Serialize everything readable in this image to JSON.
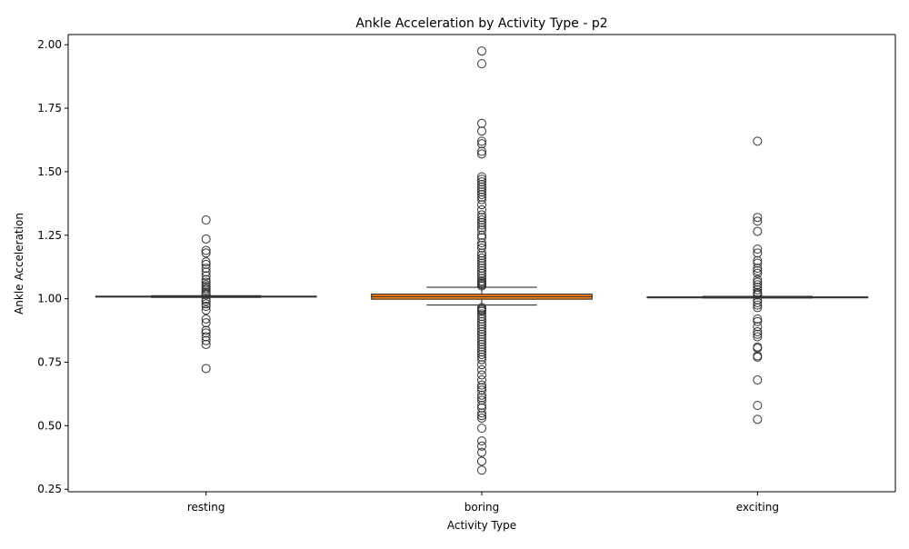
{
  "chart_data": {
    "type": "box",
    "title": "Ankle Acceleration by Activity Type - p2",
    "xlabel": "Activity Type",
    "ylabel": "Ankle Acceleration",
    "ylim": [
      0.24,
      2.04
    ],
    "yticks": [
      0.25,
      0.5,
      0.75,
      1.0,
      1.25,
      1.5,
      1.75,
      2.0
    ],
    "ytick_labels": [
      "0.25",
      "0.50",
      "0.75",
      "1.00",
      "1.25",
      "1.50",
      "1.75",
      "2.00"
    ],
    "grid": false,
    "categories": [
      "resting",
      "boring",
      "exciting"
    ],
    "boxes": [
      {
        "category": "resting",
        "color": "#1f77b4",
        "whisker_low": 1.005,
        "q1": 1.007,
        "median": 1.008,
        "q3": 1.01,
        "whisker_high": 1.012,
        "outliers": [
          1.31,
          1.235,
          1.19,
          1.18,
          1.145,
          1.135,
          1.12,
          1.105,
          1.09,
          1.075,
          1.065,
          1.055,
          1.048,
          1.04,
          1.033,
          1.026,
          1.02,
          1.015,
          0.998,
          0.99,
          0.98,
          0.97,
          0.955,
          0.92,
          0.905,
          0.875,
          0.865,
          0.85,
          0.835,
          0.82,
          0.725
        ]
      },
      {
        "category": "boring",
        "color": "#ff7f0e",
        "whisker_low": 0.975,
        "q1": 0.998,
        "median": 1.008,
        "q3": 1.018,
        "whisker_high": 1.045,
        "outliers": [
          1.975,
          1.925,
          1.69,
          1.66,
          1.62,
          1.61,
          1.58,
          1.57,
          1.48,
          1.47,
          1.46,
          1.45,
          1.44,
          1.43,
          1.42,
          1.41,
          1.4,
          1.39,
          1.37,
          1.35,
          1.33,
          1.32,
          1.31,
          1.3,
          1.29,
          1.28,
          1.27,
          1.25,
          1.24,
          1.22,
          1.21,
          1.2,
          1.18,
          1.17,
          1.16,
          1.15,
          1.14,
          1.13,
          1.12,
          1.11,
          1.1,
          1.09,
          1.08,
          1.07,
          1.065,
          1.06,
          1.055,
          1.05,
          0.965,
          0.96,
          0.955,
          0.95,
          0.94,
          0.93,
          0.92,
          0.91,
          0.9,
          0.89,
          0.88,
          0.87,
          0.86,
          0.85,
          0.84,
          0.83,
          0.82,
          0.81,
          0.8,
          0.79,
          0.78,
          0.77,
          0.76,
          0.74,
          0.72,
          0.7,
          0.68,
          0.66,
          0.65,
          0.64,
          0.62,
          0.61,
          0.6,
          0.58,
          0.57,
          0.55,
          0.54,
          0.53,
          0.49,
          0.44,
          0.42,
          0.395,
          0.36,
          0.325
        ]
      },
      {
        "category": "exciting",
        "color": "#1f77b4",
        "whisker_low": 1.003,
        "q1": 1.005,
        "median": 1.006,
        "q3": 1.007,
        "whisker_high": 1.009,
        "outliers": [
          1.62,
          1.32,
          1.305,
          1.265,
          1.195,
          1.18,
          1.15,
          1.14,
          1.12,
          1.11,
          1.1,
          1.075,
          1.065,
          1.055,
          1.045,
          1.035,
          1.025,
          1.02,
          1.015,
          0.995,
          0.985,
          0.975,
          0.965,
          0.92,
          0.91,
          0.89,
          0.87,
          0.86,
          0.85,
          0.81,
          0.805,
          0.775,
          0.77,
          0.68,
          0.58,
          0.525
        ]
      }
    ]
  }
}
